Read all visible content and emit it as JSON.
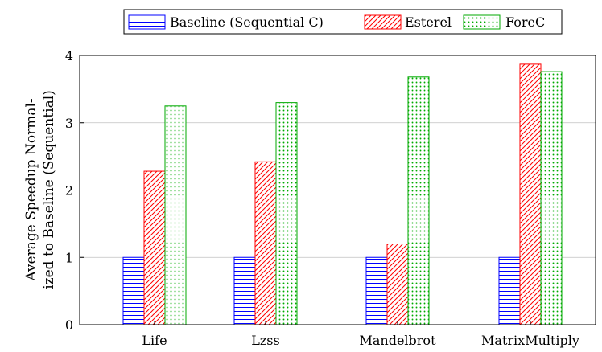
{
  "chart_data": {
    "type": "bar",
    "title": "",
    "xlabel": "",
    "ylabel_lines": [
      "Average Speedup Normal-",
      "ized to Baseline (Sequential)"
    ],
    "categories": [
      "Life",
      "Lzss",
      "Mandelbrot",
      "MatrixMultiply"
    ],
    "ylim": [
      0,
      4
    ],
    "yticks": [
      0,
      1,
      2,
      3,
      4
    ],
    "grid": "horizontal",
    "legend_position": "top",
    "series": [
      {
        "name": "Baseline (Sequential C)",
        "color": "#0000ff",
        "pattern": "horizontal-lines",
        "values": [
          1,
          1,
          1,
          1
        ]
      },
      {
        "name": "Esterel",
        "color": "#ff0000",
        "pattern": "diagonal-lines",
        "values": [
          2.28,
          2.42,
          1.2,
          3.87
        ]
      },
      {
        "name": "ForeC",
        "color": "#00aa00",
        "pattern": "dots",
        "values": [
          3.25,
          3.3,
          3.68,
          3.76
        ]
      }
    ]
  }
}
